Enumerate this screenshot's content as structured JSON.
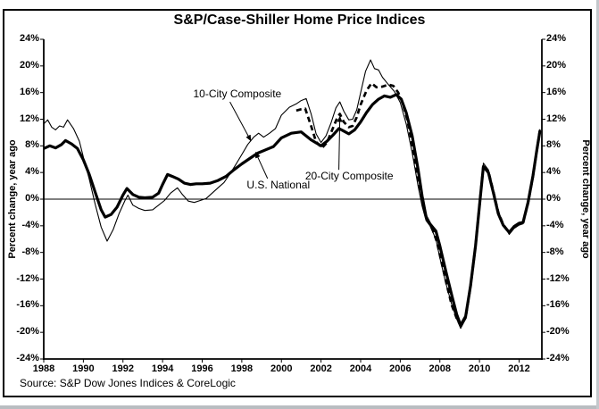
{
  "title": "S&P/Case-Shiller Home Price Indices",
  "source_note": "Source: S&P Dow Jones Indices & CoreLogic",
  "colors": {
    "line": "#000000",
    "background": "#ffffff",
    "border": "#000000"
  },
  "axes": {
    "left_label": "Percent change, year ago",
    "right_label": "Percent change, year ago",
    "y_tick_labels": [
      "24%",
      "20%",
      "16%",
      "12%",
      "8%",
      "4%",
      "0%",
      "-4%",
      "-8%",
      "-12%",
      "-16%",
      "-20%",
      "-24%"
    ],
    "x_tick_labels": [
      "1988",
      "1990",
      "1992",
      "1994",
      "1996",
      "1998",
      "2000",
      "2002",
      "2004",
      "2006",
      "2008",
      "2010",
      "2012"
    ]
  },
  "chart_data": {
    "type": "line",
    "title": "S&P/Case-Shiller Home Price Indices",
    "ylabel": "Percent change, year ago",
    "x_range": [
      1988,
      2013.15
    ],
    "y_range": [
      -24,
      24
    ],
    "y_ticks": [
      24,
      20,
      16,
      12,
      8,
      4,
      0,
      -4,
      -8,
      -12,
      -16,
      -20,
      -24
    ],
    "x_ticks": [
      1988,
      1990,
      1992,
      1994,
      1996,
      1998,
      2000,
      2002,
      2004,
      2006,
      2008,
      2010,
      2012
    ],
    "zero_line": true,
    "grid": false,
    "legend": "inline-annotations",
    "series": [
      {
        "name": "10-City Composite",
        "style": "thin-solid",
        "points": [
          [
            1988.0,
            11.3
          ],
          [
            1988.2,
            11.9
          ],
          [
            1988.4,
            10.8
          ],
          [
            1988.6,
            10.4
          ],
          [
            1988.8,
            11.0
          ],
          [
            1989.0,
            10.8
          ],
          [
            1989.2,
            11.9
          ],
          [
            1989.5,
            10.6
          ],
          [
            1989.8,
            8.7
          ],
          [
            1990.0,
            6.3
          ],
          [
            1990.3,
            3.0
          ],
          [
            1990.6,
            -0.8
          ],
          [
            1990.9,
            -4.2
          ],
          [
            1991.2,
            -6.3
          ],
          [
            1991.5,
            -4.6
          ],
          [
            1991.8,
            -2.2
          ],
          [
            1992.1,
            -0.2
          ],
          [
            1992.25,
            0.6
          ],
          [
            1992.5,
            -0.9
          ],
          [
            1992.8,
            -1.4
          ],
          [
            1993.1,
            -1.7
          ],
          [
            1993.5,
            -1.6
          ],
          [
            1993.8,
            -0.9
          ],
          [
            1994.1,
            -0.2
          ],
          [
            1994.4,
            0.9
          ],
          [
            1994.75,
            1.7
          ],
          [
            1995.0,
            0.7
          ],
          [
            1995.3,
            -0.3
          ],
          [
            1995.6,
            -0.5
          ],
          [
            1995.9,
            -0.2
          ],
          [
            1996.2,
            0.1
          ],
          [
            1996.5,
            0.9
          ],
          [
            1996.8,
            1.7
          ],
          [
            1997.1,
            2.5
          ],
          [
            1997.4,
            3.8
          ],
          [
            1997.7,
            5.2
          ],
          [
            1998.0,
            6.7
          ],
          [
            1998.3,
            8.2
          ],
          [
            1998.6,
            9.3
          ],
          [
            1998.85,
            9.9
          ],
          [
            1999.1,
            9.3
          ],
          [
            1999.4,
            9.9
          ],
          [
            1999.7,
            10.6
          ],
          [
            2000.0,
            12.6
          ],
          [
            2000.4,
            13.8
          ],
          [
            2000.75,
            14.3
          ],
          [
            2001.0,
            14.8
          ],
          [
            2001.25,
            15.1
          ],
          [
            2001.5,
            12.8
          ],
          [
            2001.75,
            9.8
          ],
          [
            2002.0,
            8.5
          ],
          [
            2002.25,
            9.5
          ],
          [
            2002.5,
            11.4
          ],
          [
            2002.75,
            13.7
          ],
          [
            2002.95,
            14.6
          ],
          [
            2003.15,
            13.2
          ],
          [
            2003.4,
            11.9
          ],
          [
            2003.6,
            12.0
          ],
          [
            2003.8,
            13.4
          ],
          [
            2004.0,
            16.0
          ],
          [
            2004.25,
            19.2
          ],
          [
            2004.5,
            20.9
          ],
          [
            2004.7,
            19.6
          ],
          [
            2004.9,
            19.4
          ],
          [
            2005.1,
            18.3
          ],
          [
            2005.4,
            17.2
          ],
          [
            2005.7,
            16.2
          ],
          [
            2006.0,
            14.5
          ],
          [
            2006.3,
            11.3
          ],
          [
            2006.6,
            7.0
          ],
          [
            2006.9,
            2.0
          ],
          [
            2007.1,
            -1.0
          ],
          [
            2007.3,
            -3.2
          ],
          [
            2007.5,
            -4.0
          ],
          [
            2007.8,
            -6.0
          ],
          [
            2008.0,
            -8.8
          ],
          [
            2008.3,
            -12.6
          ],
          [
            2008.6,
            -15.8
          ],
          [
            2008.85,
            -18.0
          ],
          [
            2009.05,
            -19.4
          ],
          [
            2009.3,
            -18.0
          ],
          [
            2009.55,
            -13.3
          ],
          [
            2009.8,
            -7.2
          ],
          [
            2010.0,
            -1.2
          ],
          [
            2010.2,
            5.4
          ],
          [
            2010.45,
            4.4
          ],
          [
            2010.7,
            1.4
          ],
          [
            2010.95,
            -1.9
          ],
          [
            2011.2,
            -3.7
          ],
          [
            2011.5,
            -5.3
          ],
          [
            2011.75,
            -4.4
          ],
          [
            2012.0,
            -3.9
          ],
          [
            2012.2,
            -3.7
          ],
          [
            2012.45,
            -0.8
          ],
          [
            2012.7,
            3.2
          ],
          [
            2012.9,
            7.2
          ],
          [
            2013.05,
            10.5
          ]
        ]
      },
      {
        "name": "U.S. National",
        "style": "thick-solid",
        "points": [
          [
            1988.0,
            7.6
          ],
          [
            1988.3,
            8.0
          ],
          [
            1988.6,
            7.7
          ],
          [
            1988.9,
            8.2
          ],
          [
            1989.1,
            8.8
          ],
          [
            1989.4,
            8.3
          ],
          [
            1989.7,
            7.6
          ],
          [
            1990.0,
            5.9
          ],
          [
            1990.3,
            3.7
          ],
          [
            1990.6,
            1.0
          ],
          [
            1990.9,
            -1.6
          ],
          [
            1991.1,
            -2.7
          ],
          [
            1991.4,
            -2.3
          ],
          [
            1991.7,
            -1.2
          ],
          [
            1992.0,
            0.6
          ],
          [
            1992.2,
            1.6
          ],
          [
            1992.5,
            0.7
          ],
          [
            1992.8,
            0.3
          ],
          [
            1993.1,
            0.2
          ],
          [
            1993.5,
            0.3
          ],
          [
            1993.8,
            0.9
          ],
          [
            1994.0,
            2.2
          ],
          [
            1994.25,
            3.7
          ],
          [
            1994.5,
            3.4
          ],
          [
            1994.8,
            3.0
          ],
          [
            1995.1,
            2.4
          ],
          [
            1995.4,
            2.2
          ],
          [
            1995.7,
            2.3
          ],
          [
            1996.0,
            2.3
          ],
          [
            1996.4,
            2.4
          ],
          [
            1996.8,
            2.8
          ],
          [
            1997.2,
            3.4
          ],
          [
            1997.6,
            4.4
          ],
          [
            1998.0,
            5.3
          ],
          [
            1998.4,
            6.1
          ],
          [
            1998.8,
            6.9
          ],
          [
            1999.2,
            7.4
          ],
          [
            1999.6,
            7.9
          ],
          [
            2000.0,
            9.2
          ],
          [
            2000.5,
            9.9
          ],
          [
            2001.0,
            10.1
          ],
          [
            2001.5,
            8.9
          ],
          [
            2002.0,
            8.0
          ],
          [
            2002.3,
            8.7
          ],
          [
            2002.6,
            9.6
          ],
          [
            2002.9,
            10.6
          ],
          [
            2003.1,
            10.3
          ],
          [
            2003.4,
            9.8
          ],
          [
            2003.7,
            10.4
          ],
          [
            2004.0,
            11.6
          ],
          [
            2004.3,
            13.0
          ],
          [
            2004.6,
            14.2
          ],
          [
            2004.9,
            15.0
          ],
          [
            2005.2,
            15.5
          ],
          [
            2005.5,
            15.3
          ],
          [
            2005.8,
            15.7
          ],
          [
            2006.05,
            15.0
          ],
          [
            2006.3,
            13.0
          ],
          [
            2006.6,
            9.5
          ],
          [
            2006.9,
            4.5
          ],
          [
            2007.1,
            0.5
          ],
          [
            2007.3,
            -2.6
          ],
          [
            2007.5,
            -3.7
          ],
          [
            2007.8,
            -4.8
          ],
          [
            2008.0,
            -7.0
          ],
          [
            2008.3,
            -10.8
          ],
          [
            2008.6,
            -14.4
          ],
          [
            2008.85,
            -17.3
          ],
          [
            2009.05,
            -18.9
          ],
          [
            2009.3,
            -17.6
          ],
          [
            2009.55,
            -13.0
          ],
          [
            2009.8,
            -7.0
          ],
          [
            2010.0,
            -1.0
          ],
          [
            2010.2,
            4.9
          ],
          [
            2010.45,
            4.0
          ],
          [
            2010.7,
            1.0
          ],
          [
            2010.95,
            -2.2
          ],
          [
            2011.2,
            -3.9
          ],
          [
            2011.5,
            -5.0
          ],
          [
            2011.75,
            -4.1
          ],
          [
            2012.0,
            -3.6
          ],
          [
            2012.2,
            -3.5
          ],
          [
            2012.45,
            -0.5
          ],
          [
            2012.7,
            3.5
          ],
          [
            2012.9,
            7.5
          ],
          [
            2013.05,
            10.2
          ]
        ]
      },
      {
        "name": "20-City Composite",
        "style": "dashed",
        "points": [
          [
            2000.75,
            13.3
          ],
          [
            2001.0,
            13.5
          ],
          [
            2001.2,
            13.6
          ],
          [
            2001.5,
            11.0
          ],
          [
            2001.75,
            8.6
          ],
          [
            2002.05,
            7.7
          ],
          [
            2002.3,
            8.5
          ],
          [
            2002.55,
            10.3
          ],
          [
            2002.8,
            12.1
          ],
          [
            2002.95,
            12.8
          ],
          [
            2003.15,
            11.6
          ],
          [
            2003.4,
            10.8
          ],
          [
            2003.6,
            11.0
          ],
          [
            2003.8,
            12.3
          ],
          [
            2004.0,
            14.2
          ],
          [
            2004.3,
            16.3
          ],
          [
            2004.55,
            17.4
          ],
          [
            2004.8,
            16.8
          ],
          [
            2005.1,
            16.9
          ],
          [
            2005.4,
            17.2
          ],
          [
            2005.65,
            17.0
          ],
          [
            2005.9,
            16.0
          ],
          [
            2006.1,
            14.6
          ],
          [
            2006.35,
            12.0
          ],
          [
            2006.6,
            8.2
          ],
          [
            2006.9,
            3.2
          ],
          [
            2007.1,
            -0.2
          ],
          [
            2007.35,
            -3.0
          ],
          [
            2007.6,
            -4.3
          ],
          [
            2007.85,
            -6.4
          ],
          [
            2008.05,
            -9.0
          ],
          [
            2008.35,
            -12.9
          ],
          [
            2008.6,
            -15.9
          ],
          [
            2008.85,
            -17.9
          ],
          [
            2009.05,
            -19.0
          ],
          [
            2009.3,
            -17.8
          ],
          [
            2009.55,
            -13.1
          ],
          [
            2009.8,
            -7.0
          ],
          [
            2010.0,
            -1.0
          ],
          [
            2010.2,
            5.1
          ],
          [
            2010.45,
            4.2
          ],
          [
            2010.7,
            1.2
          ],
          [
            2010.95,
            -2.0
          ],
          [
            2011.2,
            -3.8
          ],
          [
            2011.5,
            -5.1
          ],
          [
            2011.75,
            -4.2
          ],
          [
            2012.0,
            -3.7
          ],
          [
            2012.2,
            -3.6
          ],
          [
            2012.45,
            -0.6
          ],
          [
            2012.7,
            3.4
          ],
          [
            2012.9,
            7.4
          ],
          [
            2013.08,
            10.9
          ]
        ]
      }
    ],
    "annotations": [
      {
        "label": "10-City Composite",
        "text_at": [
          1995.55,
          15.8
        ],
        "arrow_from": [
          1997.4,
          14.6
        ],
        "arrow_to": [
          1998.45,
          8.8
        ]
      },
      {
        "label": "U.S. National",
        "text_at": [
          1998.25,
          2.1
        ],
        "arrow_from": [
          1999.3,
          3.1
        ],
        "arrow_to": [
          1998.7,
          7.0
        ]
      },
      {
        "label": "20-City Composite",
        "text_at": [
          2001.2,
          3.5
        ],
        "arrow_from": [
          2002.9,
          4.4
        ],
        "arrow_to": [
          2002.95,
          12.4
        ]
      }
    ]
  }
}
